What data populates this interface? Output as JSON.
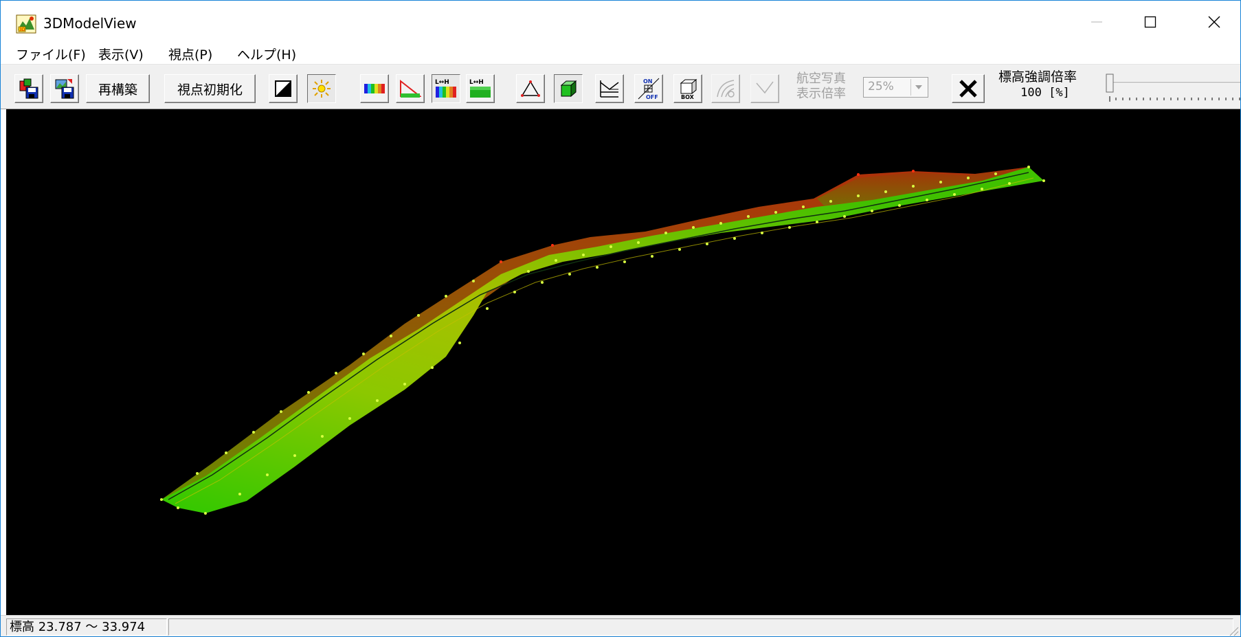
{
  "window": {
    "title": "3DModelView"
  },
  "menu": {
    "file": "ファイル(F)",
    "view": "表示(V)",
    "viewpoint": "視点(P)",
    "help": "ヘルプ(H)"
  },
  "toolbar": {
    "rebuild_label": "再構築",
    "reset_view_label": "視点初期化",
    "lh_tag": "L↔H",
    "on_tag": "ON",
    "off_tag": "OFF",
    "box_tag": "BOX",
    "aerial_label_line1": "航空写真",
    "aerial_label_line2": "表示倍率",
    "aerial_scale_value": "25%",
    "exaggeration_label": "標高強調倍率",
    "exaggeration_value": "100 [%]"
  },
  "status": {
    "elevation_range": "標高 23.787 〜 33.974"
  },
  "icons": {
    "app": "app-icon",
    "minimize": "minimize-icon",
    "maximize": "maximize-icon",
    "close": "close-icon"
  },
  "colors": {
    "viewport_bg": "#000000",
    "model_low": "#33cc00",
    "model_mid": "#a8c800",
    "model_high": "#b03a0a",
    "window_border": "#1883d7"
  }
}
